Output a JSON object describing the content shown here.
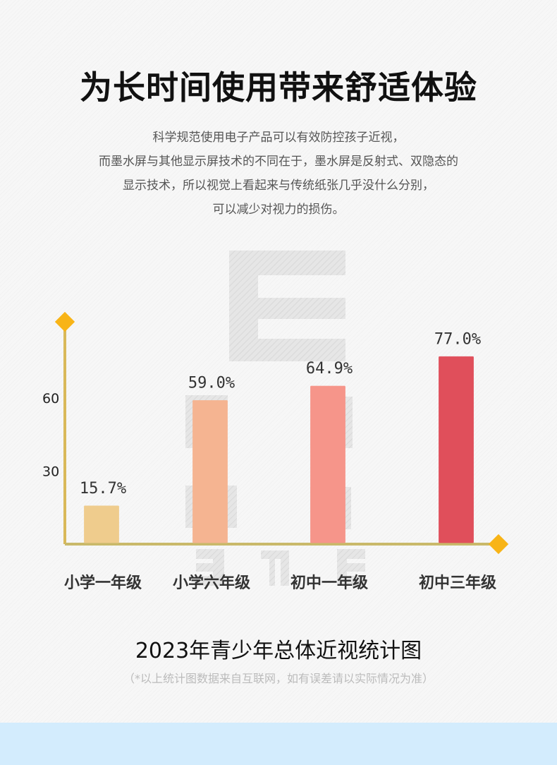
{
  "header": {
    "title": "为长时间使用带来舒适体验",
    "description": [
      "科学规范使用电子产品可以有效防控孩子近视，",
      "而墨水屏与其他显示屏技术的不同在于，墨水屏是反射式、双隐态的",
      "显示技术，所以视觉上看起来与传统纸张几乎没什么分别，",
      "可以减少对视力的损伤。"
    ]
  },
  "chart_data": {
    "type": "bar",
    "title": "2023年青少年总体近视统计图",
    "note": "（*以上统计图数据来自互联网，如有误差请以实际情况为准）",
    "categories": [
      "小学一年级",
      "小学六年级",
      "初中一年级",
      "初中三年级"
    ],
    "values": [
      15.7,
      59.0,
      64.9,
      77.0
    ],
    "data_labels": [
      "15.7%",
      "59.0%",
      "64.9%",
      "77.0%"
    ],
    "yticks": [
      30,
      60
    ],
    "ylim": [
      0,
      85
    ],
    "xlabel": "",
    "ylabel": "",
    "grid": false,
    "colors": [
      "#efcc8d",
      "#f5b491",
      "#f6958a",
      "#e04f5b"
    ],
    "axis_color": "#d9b95a",
    "marker_color": "#f8b417"
  }
}
